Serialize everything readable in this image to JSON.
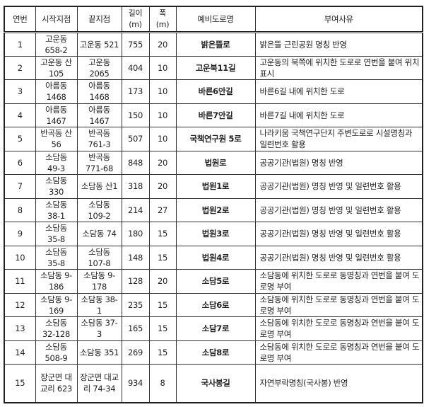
{
  "headers": {
    "no": "연번",
    "start": "시작지점",
    "end": "끝지점",
    "length": "길이",
    "length_unit": "(m)",
    "width": "폭",
    "width_unit": "(m)",
    "name": "예비도로명",
    "reason": "부여사유"
  },
  "rows": [
    {
      "no": "1",
      "start": "고운동 658-2",
      "end": "고운동 521",
      "length": "755",
      "width": "20",
      "name": "밝은뜰로",
      "reason": "밝은뜰 근린공원 명칭 반영"
    },
    {
      "no": "2",
      "start": "고운동 산105",
      "end": "고운동 2065",
      "length": "404",
      "width": "10",
      "name": "고운북11길",
      "reason": "고운동의 북쪽에 위치한 도로로 연번을 붙여 위치표시"
    },
    {
      "no": "3",
      "start": "아름동 1468",
      "end": "아름동 1468",
      "length": "173",
      "width": "10",
      "name": "바른6안길",
      "reason": "바른6길 내에 위치한 도로"
    },
    {
      "no": "4",
      "start": "아름동 1467",
      "end": "아름동 1467",
      "length": "150",
      "width": "10",
      "name": "바른7안길",
      "reason": "바른7길 내에 위치한 도로"
    },
    {
      "no": "5",
      "start": "반곡동 산56",
      "end": "반곡동 761-3",
      "length": "507",
      "width": "10",
      "name": "국책연구원 5로",
      "reason": "나라키움 국책연구단지 주변도로로 시설명칭과 일련번호 활용"
    },
    {
      "no": "6",
      "start": "소담동 49-3",
      "end": "반곡동 771-68",
      "length": "848",
      "width": "20",
      "name": "법원로",
      "reason": "공공기관(법원) 명칭 반영"
    },
    {
      "no": "7",
      "start": "소담동 330",
      "end": "소담동 산1",
      "length": "318",
      "width": "20",
      "name": "법원1로",
      "reason": "공공기관(법원) 명칭 반영 및 일련번호 활용"
    },
    {
      "no": "8",
      "start": "소담동 38-1",
      "end": "소담동 109-2",
      "length": "214",
      "width": "27",
      "name": "법원2로",
      "reason": "공공기관(법원) 명칭 반영 및 일련번호 활용"
    },
    {
      "no": "9",
      "start": "소담동 35-8",
      "end": "소담동 74",
      "length": "180",
      "width": "15",
      "name": "법원3로",
      "reason": "공공기관(법원) 명칭 반영 및 일련번호 활용"
    },
    {
      "no": "10",
      "start": "소담동 35-8",
      "end": "소담동 107-8",
      "length": "148",
      "width": "15",
      "name": "법원4로",
      "reason": "공공기관(법원) 명칭 반영 및 일련번호 활용"
    },
    {
      "no": "11",
      "start": "소담동 9-186",
      "end": "소담동 9-178",
      "length": "128",
      "width": "20",
      "name": "소담5로",
      "reason": "소담동에 위치한 도로로 동명칭과 연번을 붙여 도로명 부여"
    },
    {
      "no": "12",
      "start": "소담동 9-169",
      "end": "소담동 38-1",
      "length": "235",
      "width": "15",
      "name": "소담6로",
      "reason": "소담동에 위치한 도로로 동명칭과 연번을 붙여 도로명 부여"
    },
    {
      "no": "13",
      "start": "소담동 32-128",
      "end": "소담동 37-3",
      "length": "165",
      "width": "15",
      "name": "소담7로",
      "reason": "소담동에 위치한 도로로 동명칭과 연번을 붙여 도로명 부여"
    },
    {
      "no": "14",
      "start": "소담동 508-9",
      "end": "소담동 351",
      "length": "269",
      "width": "15",
      "name": "소담8로",
      "reason": "소담동에 위치한 도로로 동명칭과 연번을 붙여 도로명 부여"
    },
    {
      "no": "15",
      "start": "장군면 대교리 623",
      "end": "장군면 대교리 74-34",
      "length": "934",
      "width": "8",
      "name": "국사봉길",
      "reason": "자연부락명칭(국사봉) 반영"
    }
  ]
}
